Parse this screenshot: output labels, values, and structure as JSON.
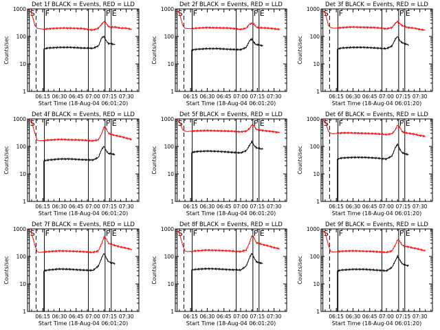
{
  "figure": {
    "x_ticks": [
      "06:15",
      "06:30",
      "06:45",
      "07:00",
      "07:15",
      "07:30"
    ],
    "x_tick_minutes": [
      375,
      390,
      405,
      420,
      435,
      450
    ],
    "x_range_minutes": [
      361.33,
      461.33
    ],
    "y_ticks": [
      "1",
      "10",
      "100",
      "1000"
    ],
    "y_scale": "log",
    "xlabel": "Start Time (18-Aug-04 06:01:20)",
    "ylabel": "Counts/sec",
    "colors": {
      "events": "#000000",
      "lld": "#ff0000"
    },
    "markers": [
      {
        "label": "S",
        "minute": 363.0,
        "style": "solid"
      },
      {
        "label": "",
        "minute": 369.0,
        "style": "dashed"
      },
      {
        "label": "F",
        "minute": 376.5,
        "style": "solid"
      },
      {
        "label": "",
        "minute": 416.0,
        "style": "solid"
      },
      {
        "label": "F",
        "minute": 431.0,
        "style": "solid"
      },
      {
        "label": "E",
        "minute": 436.5,
        "style": "solid"
      }
    ]
  },
  "chart_data": [
    {
      "type": "line",
      "title": "Det 1f BLACK = Events, RED = LLD",
      "ylim": [
        1,
        1000
      ],
      "y_scale": "log",
      "series": [
        {
          "color": "#ff0000",
          "x": [
            362,
            365,
            368,
            370,
            372,
            376,
            380,
            390,
            400,
            410,
            420,
            425,
            428,
            430,
            432,
            434,
            436,
            440,
            445,
            450,
            455
          ],
          "y": [
            1000,
            700,
            250,
            200,
            190,
            185,
            190,
            200,
            200,
            195,
            170,
            200,
            280,
            350,
            300,
            230,
            220,
            220,
            200,
            200,
            180
          ]
        },
        {
          "color": "#000000",
          "x": [
            376,
            380,
            390,
            400,
            410,
            420,
            425,
            428,
            430,
            432,
            434,
            436,
            440
          ],
          "y": [
            35,
            38,
            40,
            40,
            38,
            37,
            45,
            90,
            100,
            70,
            55,
            55,
            50
          ]
        }
      ]
    },
    {
      "type": "line",
      "title": "Det 2f BLACK = Events, RED = LLD",
      "ylim": [
        1,
        1000
      ],
      "y_scale": "log",
      "series": [
        {
          "color": "#ff0000",
          "x": [
            362,
            365,
            368,
            370,
            372,
            376,
            380,
            390,
            400,
            410,
            420,
            425,
            428,
            430,
            432,
            434,
            436,
            440,
            445,
            450,
            455
          ],
          "y": [
            1000,
            700,
            250,
            200,
            195,
            190,
            200,
            210,
            205,
            200,
            180,
            200,
            280,
            300,
            280,
            220,
            210,
            205,
            200,
            190,
            180
          ]
        },
        {
          "color": "#000000",
          "x": [
            376,
            380,
            390,
            400,
            410,
            420,
            425,
            428,
            430,
            432,
            434,
            436,
            440
          ],
          "y": [
            32,
            34,
            36,
            36,
            34,
            33,
            40,
            70,
            80,
            60,
            50,
            50,
            45
          ]
        }
      ]
    },
    {
      "type": "line",
      "title": "Det 3f BLACK = Events, RED = LLD",
      "ylim": [
        1,
        1000
      ],
      "y_scale": "log",
      "series": [
        {
          "color": "#ff0000",
          "x": [
            362,
            365,
            368,
            370,
            372,
            376,
            380,
            390,
            400,
            410,
            420,
            425,
            428,
            430,
            432,
            434,
            436,
            440,
            445,
            450,
            455
          ],
          "y": [
            1000,
            700,
            250,
            210,
            200,
            200,
            210,
            220,
            215,
            210,
            190,
            210,
            300,
            350,
            300,
            250,
            230,
            210,
            200,
            180,
            170
          ]
        },
        {
          "color": "#000000",
          "x": [
            376,
            380,
            390,
            400,
            410,
            420,
            425,
            428,
            430,
            432,
            434,
            436,
            440
          ],
          "y": [
            35,
            38,
            40,
            40,
            38,
            36,
            45,
            80,
            100,
            70,
            60,
            55,
            50
          ]
        }
      ]
    },
    {
      "type": "line",
      "title": "Det 4f BLACK = Events, RED = LLD",
      "ylim": [
        1,
        1000
      ],
      "y_scale": "log",
      "series": [
        {
          "color": "#ff0000",
          "x": [
            362,
            365,
            368,
            370,
            372,
            376,
            380,
            390,
            400,
            410,
            420,
            425,
            428,
            430,
            432,
            434,
            436,
            440,
            445,
            450,
            455
          ],
          "y": [
            1000,
            800,
            300,
            170,
            160,
            165,
            170,
            180,
            175,
            170,
            160,
            175,
            300,
            500,
            450,
            300,
            280,
            250,
            230,
            200,
            180
          ]
        },
        {
          "color": "#000000",
          "x": [
            376,
            380,
            390,
            400,
            410,
            420,
            425,
            428,
            430,
            432,
            434,
            436,
            440
          ],
          "y": [
            30,
            32,
            35,
            35,
            33,
            32,
            40,
            80,
            100,
            70,
            55,
            55,
            50
          ]
        }
      ]
    },
    {
      "type": "line",
      "title": "Det 5f BLACK = Events, RED = LLD",
      "ylim": [
        1,
        1000
      ],
      "y_scale": "log",
      "series": [
        {
          "color": "#ff0000",
          "x": [
            362,
            365,
            368,
            370,
            372,
            376,
            380,
            390,
            400,
            410,
            420,
            425,
            428,
            430,
            432,
            434,
            436,
            440,
            445,
            450,
            455
          ],
          "y": [
            1000,
            800,
            400,
            360,
            350,
            360,
            370,
            380,
            370,
            360,
            340,
            360,
            450,
            600,
            550,
            420,
            400,
            380,
            360,
            340,
            320
          ]
        },
        {
          "color": "#000000",
          "x": [
            376,
            380,
            390,
            400,
            410,
            420,
            425,
            428,
            430,
            432,
            434,
            436,
            440
          ],
          "y": [
            60,
            65,
            68,
            66,
            62,
            58,
            70,
            110,
            150,
            110,
            90,
            85,
            80
          ]
        }
      ]
    },
    {
      "type": "line",
      "title": "Det 6f BLACK = Events, RED = LLD",
      "ylim": [
        1,
        1000
      ],
      "y_scale": "log",
      "series": [
        {
          "color": "#ff0000",
          "x": [
            362,
            365,
            368,
            370,
            372,
            376,
            380,
            390,
            400,
            410,
            420,
            425,
            428,
            430,
            432,
            434,
            436,
            440,
            445,
            450,
            455
          ],
          "y": [
            1000,
            800,
            350,
            300,
            290,
            300,
            310,
            310,
            300,
            290,
            270,
            290,
            400,
            600,
            500,
            350,
            320,
            300,
            280,
            250,
            230
          ]
        },
        {
          "color": "#000000",
          "x": [
            376,
            380,
            390,
            400,
            410,
            420,
            425,
            428,
            430,
            432,
            434,
            436,
            440
          ],
          "y": [
            35,
            38,
            40,
            40,
            38,
            35,
            45,
            90,
            120,
            80,
            60,
            55,
            50
          ]
        }
      ]
    },
    {
      "type": "line",
      "title": "Det 7f BLACK = Events, RED = LLD",
      "ylim": [
        1,
        1000
      ],
      "y_scale": "log",
      "series": [
        {
          "color": "#ff0000",
          "x": [
            362,
            365,
            368,
            370,
            372,
            376,
            380,
            390,
            400,
            410,
            420,
            425,
            428,
            430,
            432,
            434,
            436,
            440,
            445,
            450,
            455
          ],
          "y": [
            1000,
            700,
            250,
            150,
            140,
            145,
            150,
            160,
            155,
            150,
            140,
            160,
            300,
            500,
            450,
            300,
            280,
            250,
            220,
            200,
            180
          ]
        },
        {
          "color": "#000000",
          "x": [
            376,
            380,
            390,
            400,
            410,
            420,
            425,
            428,
            430,
            432,
            434,
            436,
            440
          ],
          "y": [
            30,
            32,
            35,
            34,
            32,
            31,
            45,
            90,
            130,
            90,
            65,
            60,
            55
          ]
        }
      ]
    },
    {
      "type": "line",
      "title": "Det 8f BLACK = Events, RED = LLD",
      "ylim": [
        1,
        1000
      ],
      "y_scale": "log",
      "series": [
        {
          "color": "#ff0000",
          "x": [
            362,
            365,
            368,
            370,
            372,
            376,
            380,
            390,
            400,
            410,
            420,
            425,
            428,
            430,
            432,
            434,
            436,
            440,
            445,
            450,
            455
          ],
          "y": [
            1000,
            700,
            250,
            160,
            150,
            155,
            160,
            170,
            165,
            160,
            150,
            170,
            320,
            550,
            480,
            320,
            300,
            270,
            240,
            210,
            190
          ]
        },
        {
          "color": "#000000",
          "x": [
            376,
            380,
            390,
            400,
            410,
            420,
            425,
            428,
            430,
            432,
            434,
            436,
            440
          ],
          "y": [
            32,
            34,
            36,
            35,
            33,
            32,
            45,
            90,
            130,
            90,
            65,
            60,
            55
          ]
        }
      ]
    },
    {
      "type": "line",
      "title": "Det 9f BLACK = Events, RED = LLD",
      "ylim": [
        1,
        1000
      ],
      "y_scale": "log",
      "series": [
        {
          "color": "#ff0000",
          "x": [
            362,
            365,
            368,
            370,
            372,
            376,
            380,
            390,
            400,
            410,
            420,
            425,
            428,
            430,
            432,
            434,
            436,
            440,
            445,
            450,
            455
          ],
          "y": [
            1000,
            700,
            250,
            150,
            145,
            150,
            155,
            160,
            155,
            150,
            140,
            160,
            260,
            400,
            360,
            260,
            240,
            220,
            200,
            180,
            160
          ]
        },
        {
          "color": "#000000",
          "x": [
            376,
            380,
            390,
            400,
            410,
            420,
            425,
            428,
            430,
            432,
            434,
            436,
            440
          ],
          "y": [
            30,
            32,
            34,
            34,
            32,
            30,
            40,
            70,
            100,
            75,
            55,
            50,
            45
          ]
        }
      ]
    }
  ]
}
